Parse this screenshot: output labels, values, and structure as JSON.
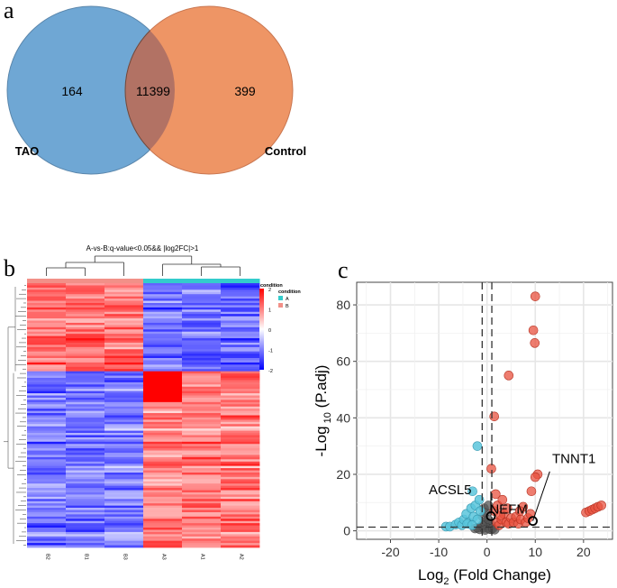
{
  "panels": {
    "a": "a",
    "b": "b",
    "c": "c"
  },
  "colors": {
    "venn_left": "#6fa7d4",
    "venn_right": "#ee9565",
    "venn_overlap": "#b27264",
    "heat_high": "#ff0000",
    "heat_mid": "#ffffff",
    "heat_low": "#0000ff",
    "cond_A": "#33cccc",
    "cond_B": "#f29088",
    "volcano_up": "#e8513f",
    "volcano_down": "#5ac5dc",
    "volcano_ns": "#555555"
  },
  "chart_data": [
    {
      "type": "venn",
      "panel": "a",
      "sets": [
        {
          "name": "TAO",
          "only": 164
        },
        {
          "name": "Control",
          "only": 399
        }
      ],
      "intersection": 11399
    },
    {
      "type": "heatmap",
      "panel": "b",
      "title": "A-vs-B:q-value<0.05&& |log2FC|>1",
      "columns": [
        "B2",
        "B1",
        "B3",
        "A3",
        "A1",
        "A2"
      ],
      "column_condition": [
        "B",
        "B",
        "B",
        "A",
        "A",
        "A"
      ],
      "condition_legend_title": "condition",
      "condition_legend": [
        "A",
        "B"
      ],
      "colorbar_ticks": [
        "2",
        "1",
        "0",
        "-1",
        "-2"
      ],
      "colorbar_range": [
        -2,
        2
      ],
      "row_clusters": [
        {
          "name": "up in B",
          "B": 0.9,
          "A": -0.9,
          "rows": 40
        },
        {
          "name": "up in A",
          "B": -0.8,
          "A": 0.8,
          "rows": 80
        }
      ]
    },
    {
      "type": "scatter",
      "panel": "c",
      "xlabel": "Log",
      "xlabel_sub": "2",
      "xlabel_rest": " (Fold Change)",
      "ylabel": "-Log",
      "ylabel_sub": " 10",
      "ylabel_rest": " (P.adj)",
      "xlim": [
        -27,
        26
      ],
      "ylim": [
        -3,
        88
      ],
      "xticks": [
        -20,
        -10,
        0,
        10,
        20
      ],
      "yticks": [
        0,
        20,
        40,
        60,
        80
      ],
      "vlines": [
        -1,
        1
      ],
      "hline": 1.3,
      "labels": [
        {
          "text": "ACSL5",
          "x": -3.2,
          "y": 14.5,
          "anchor": "end",
          "dy": 5
        },
        {
          "text": "TNNT1",
          "x": 13.5,
          "y": 24,
          "anchor": "start",
          "dy": 0
        },
        {
          "text": "NEFM",
          "x": 0.5,
          "y": 4.5,
          "anchor": "start",
          "dy": -5
        }
      ],
      "highlighted": [
        {
          "gene": "NEFM",
          "x": 0.8,
          "y": 5.2
        },
        {
          "gene": "TNNT1",
          "x": 9.5,
          "y": 3.5
        }
      ],
      "up_points": [
        [
          10,
          83
        ],
        [
          9.6,
          71
        ],
        [
          9.9,
          66.5
        ],
        [
          4.5,
          55
        ],
        [
          1.5,
          40.5
        ],
        [
          0.9,
          22
        ],
        [
          10.5,
          20
        ],
        [
          10,
          19
        ],
        [
          9.2,
          14
        ],
        [
          7.5,
          8.5
        ],
        [
          20.5,
          6.5
        ],
        [
          21.2,
          7
        ],
        [
          21.8,
          7.5
        ],
        [
          22.4,
          8
        ],
        [
          23,
          8.5
        ],
        [
          23.7,
          9
        ],
        [
          2,
          3
        ],
        [
          2.5,
          2
        ],
        [
          3,
          4
        ],
        [
          3.5,
          6
        ],
        [
          4,
          3
        ],
        [
          4.5,
          2.5
        ],
        [
          5,
          4.5
        ],
        [
          5.5,
          3
        ],
        [
          6,
          5
        ],
        [
          6.5,
          2.5
        ],
        [
          7,
          4
        ],
        [
          8,
          3
        ],
        [
          8.5,
          4.5
        ],
        [
          9,
          6
        ],
        [
          1.5,
          7
        ],
        [
          2.2,
          9
        ],
        [
          2.8,
          5.5
        ],
        [
          3.2,
          11
        ],
        [
          1.8,
          13
        ],
        [
          4.2,
          8
        ],
        [
          6.8,
          7
        ]
      ],
      "down_points": [
        [
          -2,
          30
        ],
        [
          -3,
          14
        ],
        [
          -8.5,
          1.5
        ],
        [
          -7.7,
          1.5
        ],
        [
          -6.5,
          2.2
        ],
        [
          -5.8,
          3
        ],
        [
          -5.2,
          2
        ],
        [
          -4.8,
          4
        ],
        [
          -4.3,
          6
        ],
        [
          -3.8,
          3
        ],
        [
          -3.3,
          8
        ],
        [
          -2.8,
          5
        ],
        [
          -2.4,
          9
        ],
        [
          -2,
          4
        ],
        [
          -1.6,
          11
        ],
        [
          -1.4,
          7
        ],
        [
          -4.1,
          2.5
        ],
        [
          -3.1,
          2
        ]
      ],
      "ns_points": [
        [
          -0.8,
          1
        ],
        [
          -0.5,
          3
        ],
        [
          -0.2,
          2
        ],
        [
          0.2,
          4
        ],
        [
          0.5,
          1.5
        ],
        [
          -0.9,
          5
        ],
        [
          0.7,
          2.5
        ],
        [
          -0.3,
          6.5
        ],
        [
          0.1,
          1
        ],
        [
          -0.6,
          8
        ],
        [
          0.3,
          9
        ],
        [
          -1.5,
          0.5
        ],
        [
          -2.5,
          0.8
        ],
        [
          -1,
          2
        ],
        [
          0.9,
          0.5
        ],
        [
          -0.4,
          0.3
        ],
        [
          0.6,
          0.6
        ],
        [
          -2,
          1.1
        ],
        [
          1.2,
          0.9
        ],
        [
          1.6,
          0.4
        ]
      ]
    }
  ]
}
